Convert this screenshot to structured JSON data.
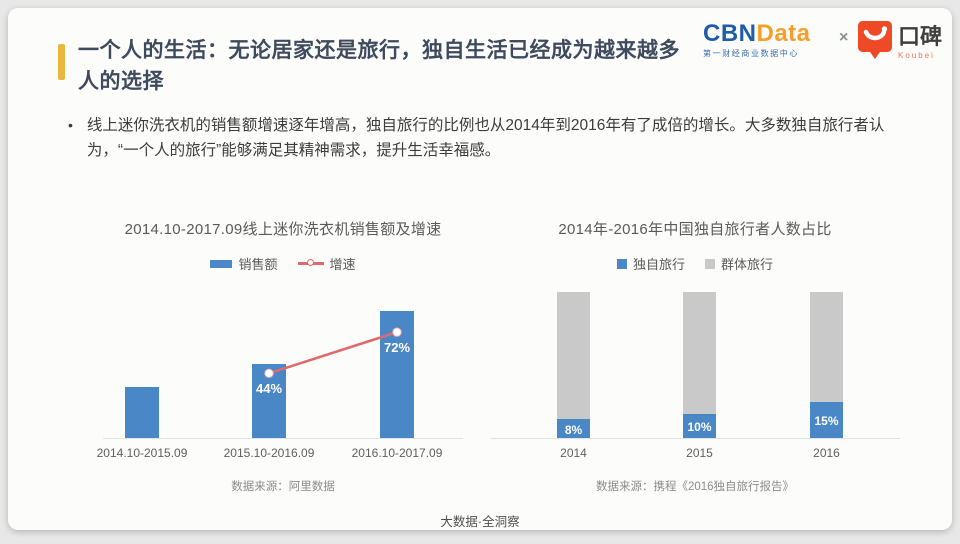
{
  "slide": {
    "title_line1": "一个人的生活：无论居家还是旅行，独自生活已经成为越来越多",
    "title_line2": "人的选择",
    "bullet_marker": "•",
    "bullet_text": "线上迷你洗衣机的销售额增速逐年增高，独自旅行的比例也从2014年到2016年有了成倍的增长。大多数独自旅行者认为，“一个人的旅行”能够满足其精神需求，提升生活幸福感。",
    "footer": "大数据·全洞察",
    "accent_color": "#e9b83d"
  },
  "header_logos": {
    "cbndata": {
      "text_blue": "CBN",
      "text_orange": "Data",
      "subtitle": "第一财经商业数据中心",
      "color_blue": "#1e5ca8",
      "color_orange": "#f59e2a"
    },
    "separator": "×",
    "koubei": {
      "name_cn": "口碑",
      "name_en": "Koubei",
      "badge_color": "#ee4a26"
    }
  },
  "chart_data": [
    {
      "type": "bar",
      "title": "2014.10-2017.09线上迷你洗衣机销售额及增速",
      "categories": [
        "2014.10-2015.09",
        "2015.10-2016.09",
        "2016.10-2017.09"
      ],
      "series": [
        {
          "name": "销售额",
          "type": "bar",
          "color": "#4a87c7",
          "values_rel": [
            0.4,
            0.58,
            1.0
          ]
        },
        {
          "name": "增速",
          "type": "line",
          "color": "#e06a6a",
          "unit": "%",
          "values": [
            null,
            44,
            72
          ],
          "labels": [
            "",
            "44%",
            "72%"
          ]
        }
      ],
      "legend_position": "top",
      "grid": false,
      "source": "数据来源：阿里数据"
    },
    {
      "type": "stacked-bar",
      "title": "2014年-2016年中国独自旅行者人数占比",
      "categories": [
        "2014",
        "2015",
        "2016"
      ],
      "series": [
        {
          "name": "独自旅行",
          "color": "#4a87c7",
          "unit": "%",
          "values": [
            8,
            10,
            15
          ],
          "labels": [
            "8%",
            "10%",
            "15%"
          ]
        },
        {
          "name": "群体旅行",
          "color": "#c9c9c9",
          "unit": "%",
          "values": [
            92,
            90,
            85
          ]
        }
      ],
      "legend_position": "top",
      "grid": false,
      "source": "数据来源：携程《2016独自旅行报告》"
    }
  ]
}
